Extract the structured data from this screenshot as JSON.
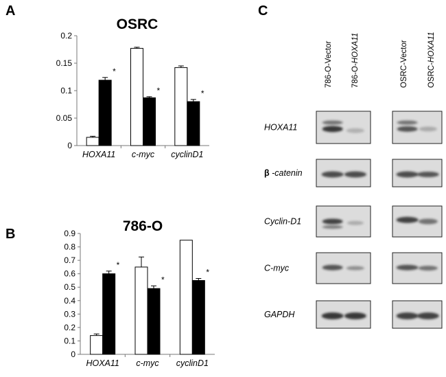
{
  "panels": {
    "A": "A",
    "B": "B",
    "C": "C"
  },
  "chart_data": [
    {
      "type": "bar",
      "title": "OSRC",
      "categories": [
        "HOXA11",
        "c-myc",
        "cyclinD1"
      ],
      "series": [
        {
          "values": [
            0.015,
            0.177,
            0.142
          ],
          "errors": [
            0.002,
            0.002,
            0.003
          ],
          "color": "#ffffff"
        },
        {
          "values": [
            0.119,
            0.087,
            0.08
          ],
          "errors": [
            0.005,
            0.002,
            0.004
          ],
          "color": "#000000"
        }
      ],
      "ylim": [
        0,
        0.2
      ],
      "yticks": [
        0,
        0.05,
        0.1,
        0.15,
        0.2
      ],
      "ytick_labels": [
        "0",
        "0.05",
        "0.1",
        "0.15",
        "0.2"
      ],
      "significance": [
        "*",
        "*",
        "*"
      ],
      "xlabel": "",
      "ylabel": "",
      "grid": false
    },
    {
      "type": "bar",
      "title": "786-O",
      "categories": [
        "HOXA11",
        "c-myc",
        "cyclinD1"
      ],
      "series": [
        {
          "values": [
            0.14,
            0.65,
            0.85
          ],
          "errors": [
            0.012,
            0.075,
            0.0
          ],
          "color": "#ffffff"
        },
        {
          "values": [
            0.6,
            0.49,
            0.55
          ],
          "errors": [
            0.02,
            0.02,
            0.015
          ],
          "color": "#000000"
        }
      ],
      "ylim": [
        0,
        0.9
      ],
      "yticks": [
        0,
        0.1,
        0.2,
        0.3,
        0.4,
        0.5,
        0.6,
        0.7,
        0.8,
        0.9
      ],
      "ytick_labels": [
        "0",
        "0.1",
        "0.2",
        "0.3",
        "0.4",
        "0.5",
        "0.6",
        "0.7",
        "0.8",
        "0.9"
      ],
      "significance": [
        "*",
        "*",
        "*"
      ],
      "xlabel": "",
      "ylabel": "",
      "grid": false
    }
  ],
  "blot": {
    "lanes": [
      {
        "prefix": "786-O-",
        "name": "Vector"
      },
      {
        "prefix": "786-O-",
        "name": "HOXA11"
      },
      {
        "prefix": "OSRC-",
        "name": "Vector"
      },
      {
        "prefix": "OSRC-",
        "name": "HOXA11"
      }
    ],
    "beta_symbol": "β",
    "rows": [
      {
        "label": "HOXA11"
      },
      {
        "label": "-catenin"
      },
      {
        "label": "Cyclin-D1"
      },
      {
        "label": "C-myc"
      },
      {
        "label": "GAPDH"
      }
    ]
  }
}
